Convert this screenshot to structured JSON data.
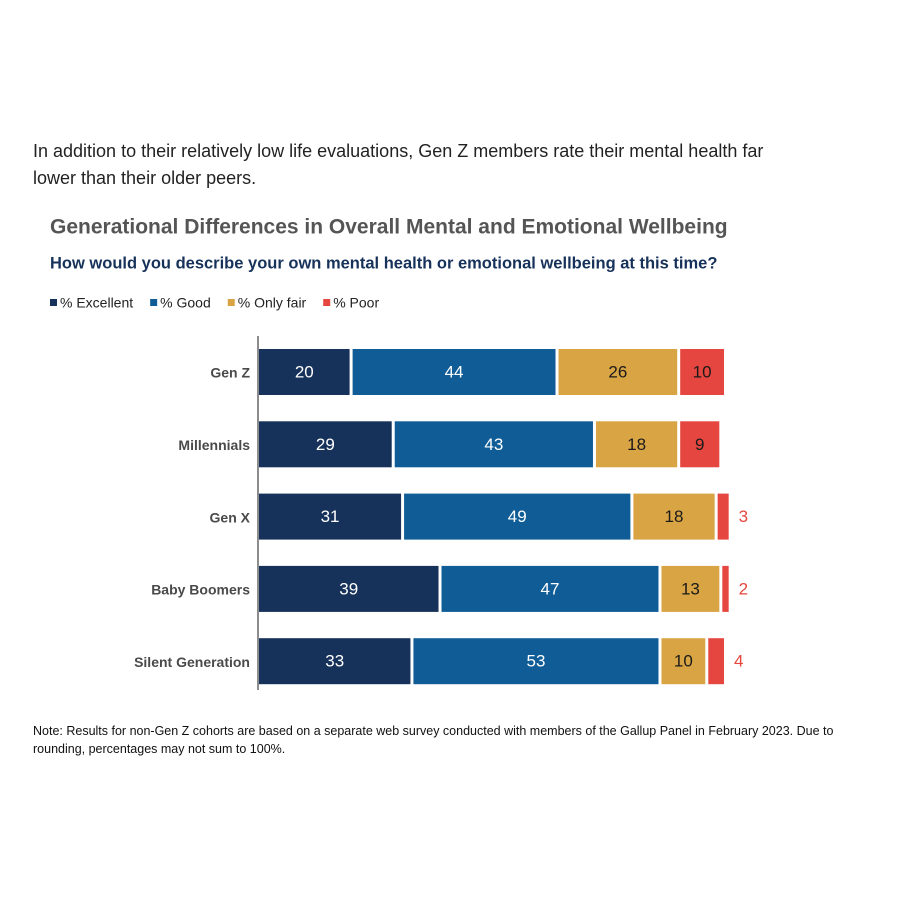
{
  "intro": "In addition to their relatively low life evaluations, Gen Z members rate their mental health far lower than their older peers.",
  "chart_data": {
    "type": "bar",
    "orientation": "horizontal",
    "stacked": true,
    "title": "Generational Differences in Overall Mental and Emotional Wellbeing",
    "subtitle": "How would you describe your own mental health or emotional wellbeing at this time?",
    "categories": [
      "Gen Z",
      "Millennials",
      "Gen X",
      "Baby Boomers",
      "Silent Generation"
    ],
    "series": [
      {
        "name": "% Excellent",
        "color": "#17325a",
        "values": [
          20,
          29,
          31,
          39,
          33
        ]
      },
      {
        "name": "% Good",
        "color": "#0f5c97",
        "values": [
          44,
          43,
          49,
          47,
          53
        ]
      },
      {
        "name": "% Only fair",
        "color": "#d9a443",
        "values": [
          26,
          18,
          18,
          13,
          10
        ]
      },
      {
        "name": "% Poor",
        "color": "#e5463f",
        "values": [
          10,
          9,
          3,
          2,
          4
        ]
      }
    ],
    "legend": "top-left",
    "note": "Note: Results for non-Gen Z cohorts are based on a separate web survey conducted with members of the Gallup Panel in February 2023. Due to rounding, percentages may not sum to 100%."
  }
}
